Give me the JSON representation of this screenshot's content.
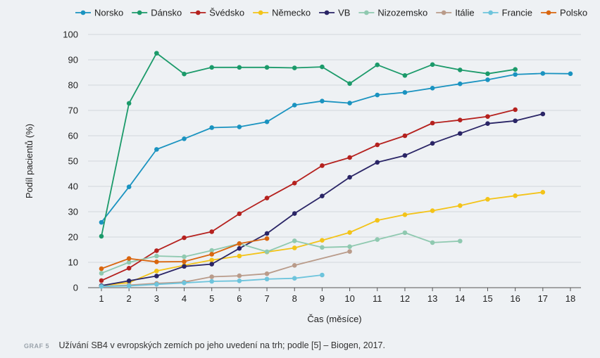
{
  "chart_data": {
    "type": "line",
    "xlabel": "Čas (měsíce)",
    "ylabel": "Podíl pacientů (%)",
    "xlim": [
      1,
      18
    ],
    "ylim": [
      0,
      100
    ],
    "x_ticks": [
      1,
      2,
      3,
      4,
      5,
      6,
      7,
      8,
      9,
      10,
      11,
      12,
      13,
      14,
      15,
      16,
      17,
      18
    ],
    "y_ticks": [
      0,
      10,
      20,
      30,
      40,
      50,
      60,
      70,
      80,
      90,
      100
    ],
    "grid": "horizontal",
    "legend_position": "top",
    "series": [
      {
        "name": "Norsko",
        "color": "#1a93c0",
        "x": [
          1,
          2,
          3,
          4,
          5,
          6,
          7,
          8,
          9,
          10,
          11,
          12,
          13,
          14,
          15,
          16,
          17,
          18
        ],
        "values": [
          25.8,
          39.8,
          54.6,
          58.8,
          63.2,
          63.5,
          65.5,
          72.1,
          73.7,
          72.9,
          76.1,
          77.1,
          78.8,
          80.5,
          82.1,
          84.2,
          84.6,
          84.5
        ]
      },
      {
        "name": "Dánsko",
        "color": "#1b9a6a",
        "x": [
          1,
          2,
          3,
          4,
          5,
          6,
          7,
          8,
          9,
          10,
          11,
          12,
          13,
          14,
          15,
          16
        ],
        "values": [
          20.3,
          72.8,
          92.6,
          84.4,
          87.0,
          87.0,
          87.0,
          86.8,
          87.2,
          80.6,
          88.0,
          83.8,
          88.1,
          86.0,
          84.5,
          86.2
        ]
      },
      {
        "name": "Švédsko",
        "color": "#b5211e",
        "x": [
          1,
          2,
          3,
          4,
          5,
          6,
          7,
          8,
          9,
          10,
          11,
          12,
          13,
          14,
          15,
          16
        ],
        "values": [
          2.8,
          7.7,
          14.6,
          19.7,
          22.1,
          29.2,
          35.4,
          41.3,
          48.2,
          51.4,
          56.4,
          60.0,
          65.0,
          66.2,
          67.6,
          70.3
        ]
      },
      {
        "name": "Německo",
        "color": "#f3c318",
        "x": [
          1,
          2,
          3,
          4,
          5,
          6,
          7,
          8,
          9,
          10,
          11,
          12,
          13,
          14,
          15,
          16,
          17
        ],
        "values": [
          0.8,
          2.0,
          6.6,
          8.8,
          10.9,
          12.5,
          14.1,
          15.7,
          18.7,
          21.8,
          26.6,
          28.8,
          30.4,
          32.4,
          34.9,
          36.3,
          37.7
        ]
      },
      {
        "name": "VB",
        "color": "#2a2566",
        "x": [
          1,
          2,
          3,
          4,
          5,
          6,
          7,
          8,
          9,
          10,
          11,
          12,
          13,
          14,
          15,
          16,
          17
        ],
        "values": [
          0.8,
          2.7,
          4.6,
          8.4,
          9.3,
          15.5,
          21.4,
          29.3,
          36.2,
          43.6,
          49.5,
          52.2,
          57.0,
          60.9,
          64.8,
          65.9,
          68.6
        ]
      },
      {
        "name": "Nizozemsko",
        "color": "#8fc9b0",
        "x": [
          1,
          2,
          3,
          4,
          5,
          6,
          7,
          8,
          9,
          10,
          11,
          12,
          13,
          14
        ],
        "values": [
          5.7,
          10.0,
          12.5,
          12.2,
          14.7,
          17.4,
          14.2,
          18.5,
          15.9,
          16.2,
          19.0,
          21.7,
          17.8,
          18.4
        ]
      },
      {
        "name": "Itálie",
        "color": "#b99b8a",
        "x": [
          1,
          2,
          3,
          4,
          5,
          6,
          7,
          8,
          10
        ],
        "values": [
          0.5,
          1.0,
          1.7,
          2.2,
          4.3,
          4.7,
          5.5,
          8.8,
          14.3
        ]
      },
      {
        "name": "Francie",
        "color": "#6dc4dc",
        "x": [
          1,
          2,
          3,
          4,
          5,
          6,
          7,
          8,
          9
        ],
        "values": [
          0.5,
          0.7,
          1.3,
          1.9,
          2.5,
          2.7,
          3.4,
          3.7,
          5.0
        ]
      },
      {
        "name": "Polsko",
        "color": "#d9660f",
        "x": [
          1,
          2,
          3,
          4,
          5,
          6,
          7
        ],
        "values": [
          7.5,
          11.5,
          10.2,
          10.3,
          13.2,
          17.4,
          19.4
        ]
      }
    ]
  },
  "caption": {
    "tag": "GRAF 5",
    "text": "Užívání SB4 v evropských zemích po jeho uvedení na trh; podle [5] – Biogen, 2017."
  }
}
